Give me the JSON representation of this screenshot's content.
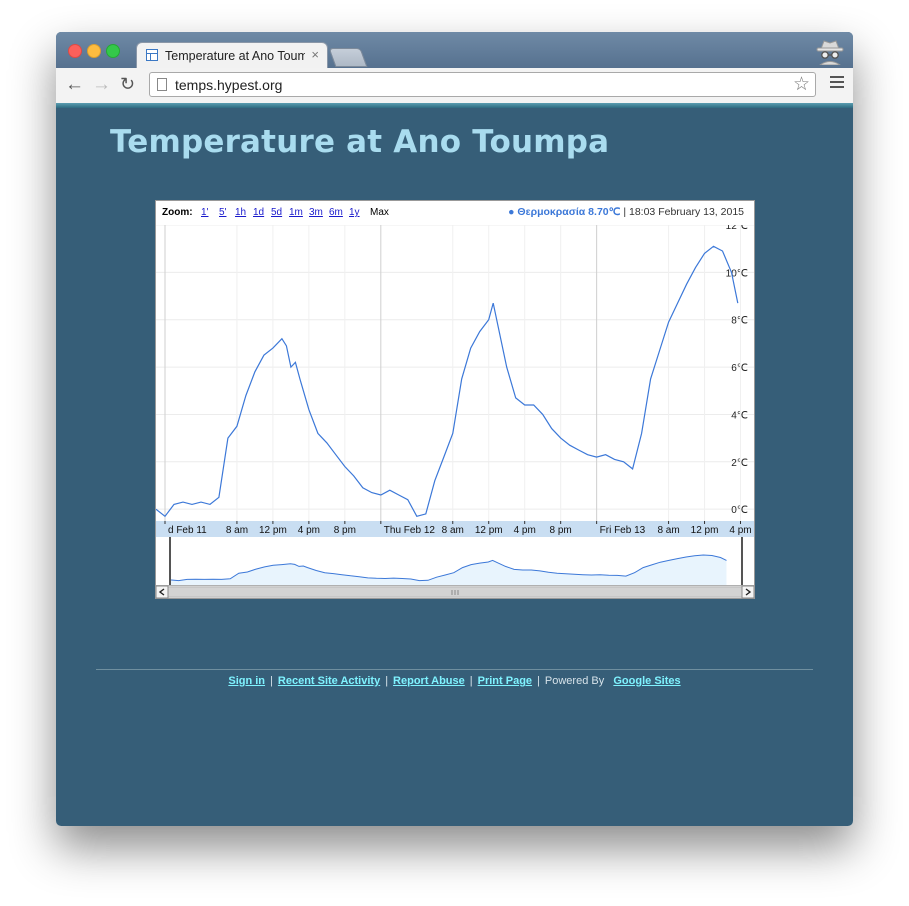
{
  "browser": {
    "tab_title": "Temperature at Ano Toump",
    "tab_close": "×",
    "url": "temps.hypest.org"
  },
  "page": {
    "title": "Temperature at Ano Toumpa"
  },
  "chart_toolbar": {
    "zoom_label": "Zoom:",
    "zoom_links": [
      "1'",
      "5'",
      "1h",
      "1d",
      "5d",
      "1m",
      "3m",
      "6m",
      "1y"
    ],
    "zoom_max": "Max",
    "legend_marker": "●",
    "series_label": "Θερμοκρασία 8.70℃",
    "timestamp": "18:03 February 13, 2015"
  },
  "chart_data": {
    "type": "line",
    "ylim": [
      -0.5,
      12
    ],
    "y_ticks": [
      {
        "value": 0,
        "label": "0℃"
      },
      {
        "value": 2,
        "label": "2℃"
      },
      {
        "value": 4,
        "label": "4℃"
      },
      {
        "value": 6,
        "label": "6℃"
      },
      {
        "value": 8,
        "label": "8℃"
      },
      {
        "value": 10,
        "label": "10℃"
      },
      {
        "value": 12,
        "label": "12℃"
      }
    ],
    "x_domain_hours": [
      -1,
      65.5
    ],
    "x_ticks": [
      {
        "hour": 0,
        "label": "d Feb 11"
      },
      {
        "hour": 8,
        "label": "8 am"
      },
      {
        "hour": 12,
        "label": "12 pm"
      },
      {
        "hour": 16,
        "label": "4 pm"
      },
      {
        "hour": 20,
        "label": "8 pm"
      },
      {
        "hour": 24,
        "label": "Thu Feb 12"
      },
      {
        "hour": 32,
        "label": "8 am"
      },
      {
        "hour": 36,
        "label": "12 pm"
      },
      {
        "hour": 40,
        "label": "4 pm"
      },
      {
        "hour": 44,
        "label": "8 pm"
      },
      {
        "hour": 48,
        "label": "Fri Feb 13"
      },
      {
        "hour": 56,
        "label": "8 am"
      },
      {
        "hour": 60,
        "label": "12 pm"
      },
      {
        "hour": 64,
        "label": "4 pm"
      }
    ],
    "series": [
      {
        "color": "#3c78d8",
        "points": [
          [
            -1,
            0.0
          ],
          [
            0,
            -0.3
          ],
          [
            1,
            0.2
          ],
          [
            2,
            0.3
          ],
          [
            3,
            0.2
          ],
          [
            4,
            0.3
          ],
          [
            5,
            0.2
          ],
          [
            6,
            0.5
          ],
          [
            7,
            3.0
          ],
          [
            8,
            3.5
          ],
          [
            9,
            4.8
          ],
          [
            10,
            5.8
          ],
          [
            11,
            6.5
          ],
          [
            12,
            6.8
          ],
          [
            13,
            7.2
          ],
          [
            13.5,
            6.9
          ],
          [
            14,
            6.0
          ],
          [
            14.5,
            6.2
          ],
          [
            15,
            5.5
          ],
          [
            16,
            4.2
          ],
          [
            17,
            3.2
          ],
          [
            18,
            2.8
          ],
          [
            19,
            2.3
          ],
          [
            20,
            1.8
          ],
          [
            21,
            1.4
          ],
          [
            22,
            0.9
          ],
          [
            23,
            0.7
          ],
          [
            24,
            0.6
          ],
          [
            25,
            0.8
          ],
          [
            26,
            0.6
          ],
          [
            27,
            0.4
          ],
          [
            28,
            -0.3
          ],
          [
            29,
            -0.2
          ],
          [
            30,
            1.2
          ],
          [
            31,
            2.2
          ],
          [
            32,
            3.2
          ],
          [
            33,
            5.5
          ],
          [
            34,
            6.8
          ],
          [
            35,
            7.5
          ],
          [
            36,
            8.0
          ],
          [
            36.5,
            8.7
          ],
          [
            37,
            7.8
          ],
          [
            38,
            6.0
          ],
          [
            39,
            4.7
          ],
          [
            40,
            4.4
          ],
          [
            41,
            4.4
          ],
          [
            42,
            4.0
          ],
          [
            43,
            3.4
          ],
          [
            44,
            3.0
          ],
          [
            45,
            2.7
          ],
          [
            46,
            2.5
          ],
          [
            47,
            2.3
          ],
          [
            48,
            2.2
          ],
          [
            49,
            2.3
          ],
          [
            50,
            2.1
          ],
          [
            51,
            2.0
          ],
          [
            52,
            1.7
          ],
          [
            53,
            3.2
          ],
          [
            54,
            5.5
          ],
          [
            55,
            6.7
          ],
          [
            56,
            7.9
          ],
          [
            57,
            8.7
          ],
          [
            58,
            9.5
          ],
          [
            59,
            10.2
          ],
          [
            60,
            10.8
          ],
          [
            61,
            11.1
          ],
          [
            62,
            10.9
          ],
          [
            63,
            10.0
          ],
          [
            63.7,
            8.7
          ]
        ]
      }
    ]
  },
  "footer": {
    "sign_in": "Sign in",
    "recent_activity": "Recent Site Activity",
    "report_abuse": "Report Abuse",
    "print_page": "Print Page",
    "powered_by": "Powered By",
    "google_sites": "Google Sites"
  }
}
